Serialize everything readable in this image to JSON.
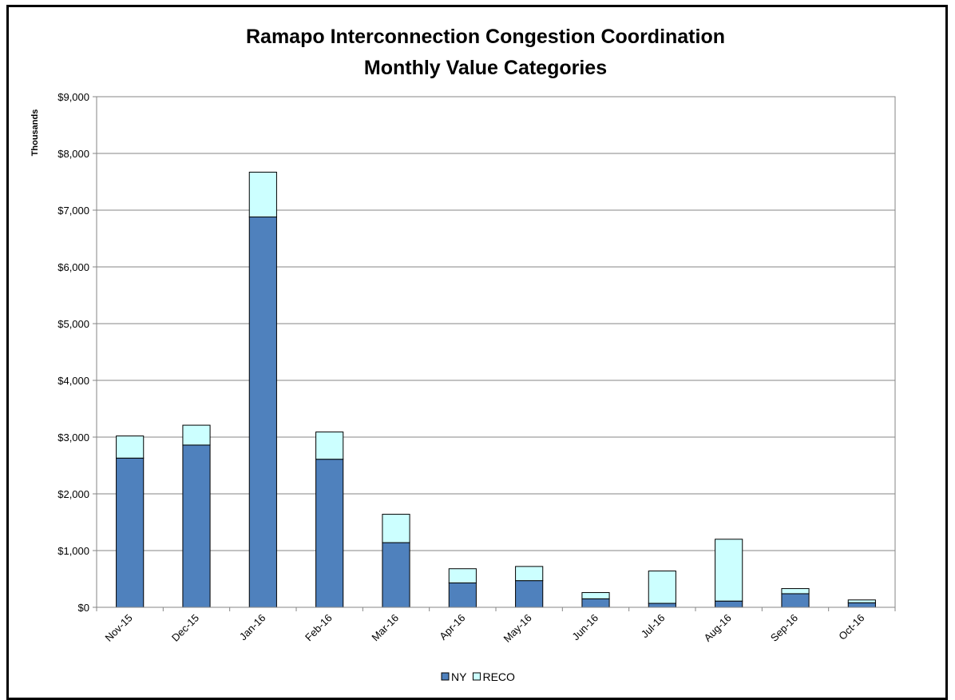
{
  "chart_data": {
    "type": "bar",
    "stacked": true,
    "title": "Ramapo Interconnection Congestion Coordination",
    "subtitle": "Monthly Value Categories",
    "ylabel": "Thousands",
    "xlabel": "",
    "ylim": [
      0,
      9000
    ],
    "yticks": [
      "$0",
      "$1,000",
      "$2,000",
      "$3,000",
      "$4,000",
      "$5,000",
      "$6,000",
      "$7,000",
      "$8,000",
      "$9,000"
    ],
    "grid": true,
    "legend_position": "bottom",
    "categories": [
      "Nov-15",
      "Dec-15",
      "Jan-16",
      "Feb-16",
      "Mar-16",
      "Apr-16",
      "May-16",
      "Jun-16",
      "Jul-16",
      "Aug-16",
      "Sep-16",
      "Oct-16"
    ],
    "series": [
      {
        "name": "NY",
        "color": "#4f81bd",
        "values": [
          2630,
          2860,
          6880,
          2610,
          1140,
          430,
          470,
          150,
          70,
          110,
          240,
          80
        ]
      },
      {
        "name": "RECO",
        "color": "#ccffff",
        "values": [
          390,
          350,
          790,
          480,
          500,
          250,
          250,
          110,
          570,
          1090,
          90,
          50
        ]
      }
    ]
  }
}
